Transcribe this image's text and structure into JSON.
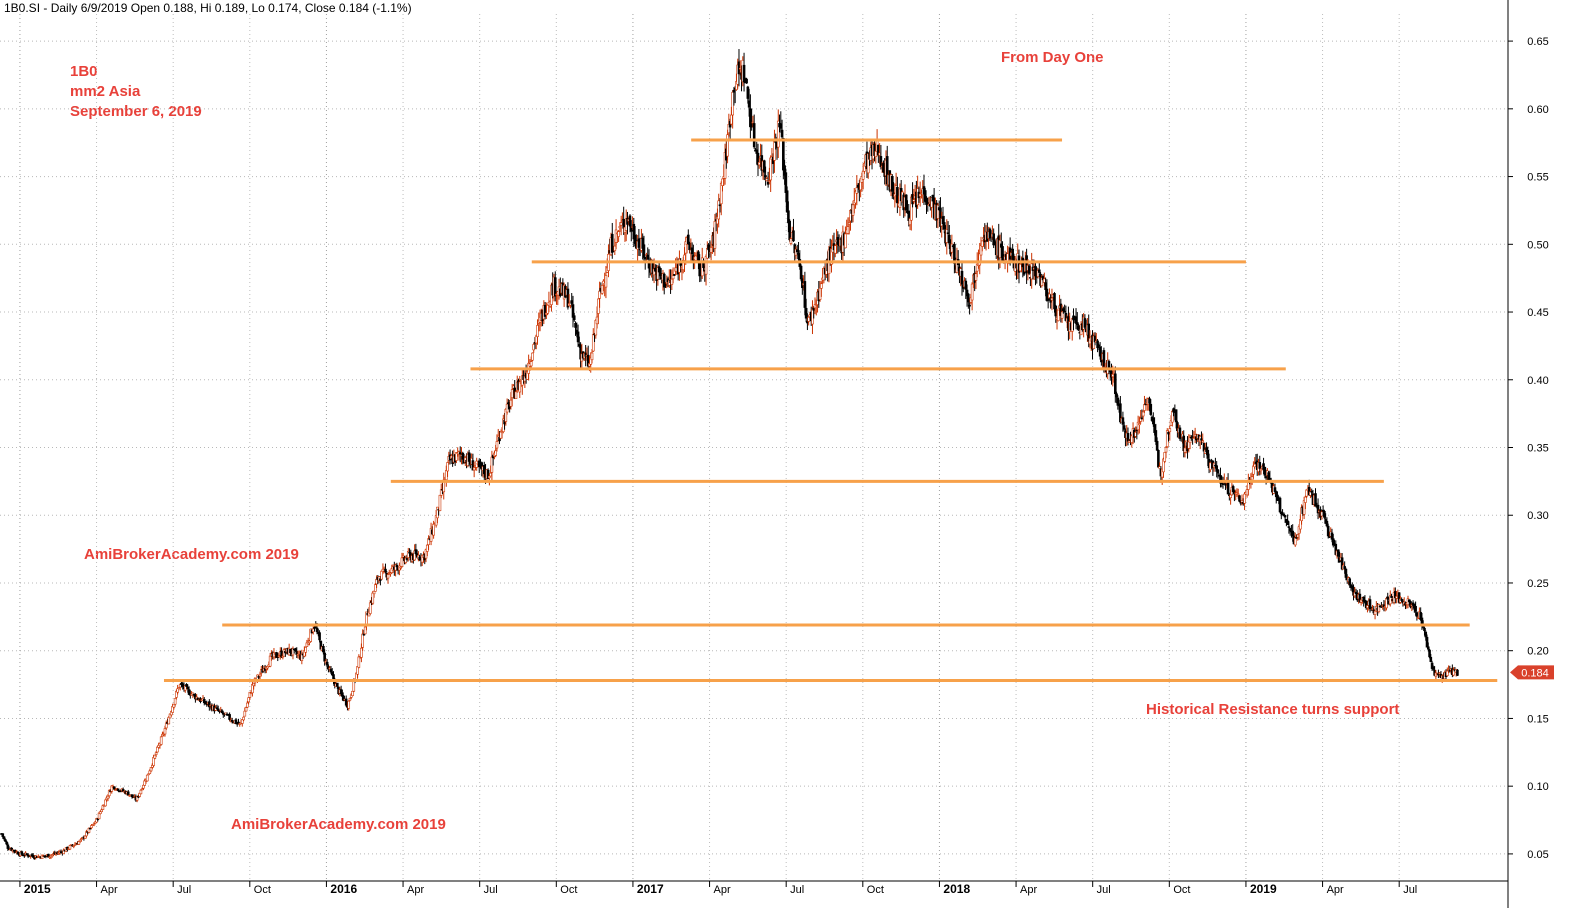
{
  "header": "1B0.SI - Daily 6/9/2019 Open 0.188, Hi 0.189, Lo 0.174, Close 0.184 (-1.1%)",
  "annotations": {
    "symbol": "1B0",
    "company": "mm2 Asia",
    "date": "September 6, 2019",
    "from_day_one": "From Day One",
    "watermark_1": "AmiBrokerAcademy.com   2019",
    "watermark_2": "AmiBrokerAcademy.com  2019",
    "support_note": "Historical Resistance turns support"
  },
  "colors": {
    "candles": "#000000",
    "wick_up": "#cc3300",
    "resistance_lines": "#f7a14a",
    "price_badge": "#d9412b",
    "annotation_text": "#e8413a"
  },
  "chart_data": {
    "type": "candlestick",
    "y_axis": {
      "ticks": [
        "0.05",
        "0.10",
        "0.15",
        "0.20",
        "0.25",
        "0.30",
        "0.35",
        "0.40",
        "0.45",
        "0.50",
        "0.55",
        "0.60",
        "0.65"
      ],
      "range": [
        0.03,
        0.67
      ],
      "side": "right"
    },
    "x_axis": {
      "labels": [
        {
          "t": 2015.0,
          "label": "2015",
          "bold": true
        },
        {
          "t": 2015.25,
          "label": "Apr",
          "bold": false
        },
        {
          "t": 2015.5,
          "label": "Jul",
          "bold": false
        },
        {
          "t": 2015.75,
          "label": "Oct",
          "bold": false
        },
        {
          "t": 2016.0,
          "label": "2016",
          "bold": true
        },
        {
          "t": 2016.25,
          "label": "Apr",
          "bold": false
        },
        {
          "t": 2016.5,
          "label": "Jul",
          "bold": false
        },
        {
          "t": 2016.75,
          "label": "Oct",
          "bold": false
        },
        {
          "t": 2017.0,
          "label": "2017",
          "bold": true
        },
        {
          "t": 2017.25,
          "label": "Apr",
          "bold": false
        },
        {
          "t": 2017.5,
          "label": "Jul",
          "bold": false
        },
        {
          "t": 2017.75,
          "label": "Oct",
          "bold": false
        },
        {
          "t": 2018.0,
          "label": "2018",
          "bold": true
        },
        {
          "t": 2018.25,
          "label": "Apr",
          "bold": false
        },
        {
          "t": 2018.5,
          "label": "Jul",
          "bold": false
        },
        {
          "t": 2018.75,
          "label": "Oct",
          "bold": false
        },
        {
          "t": 2019.0,
          "label": "2019",
          "bold": true
        },
        {
          "t": 2019.25,
          "label": "Apr",
          "bold": false
        },
        {
          "t": 2019.5,
          "label": "Jul",
          "bold": false
        }
      ],
      "range": [
        2014.935,
        2019.855
      ]
    },
    "price_path": [
      [
        2014.94,
        0.065
      ],
      [
        2014.96,
        0.055
      ],
      [
        2015.0,
        0.05
      ],
      [
        2015.06,
        0.048
      ],
      [
        2015.1,
        0.049
      ],
      [
        2015.14,
        0.052
      ],
      [
        2015.2,
        0.06
      ],
      [
        2015.25,
        0.075
      ],
      [
        2015.3,
        0.1
      ],
      [
        2015.35,
        0.095
      ],
      [
        2015.38,
        0.09
      ],
      [
        2015.42,
        0.11
      ],
      [
        2015.47,
        0.14
      ],
      [
        2015.52,
        0.175
      ],
      [
        2015.58,
        0.165
      ],
      [
        2015.65,
        0.155
      ],
      [
        2015.72,
        0.145
      ],
      [
        2015.76,
        0.175
      ],
      [
        2015.82,
        0.195
      ],
      [
        2015.88,
        0.2
      ],
      [
        2015.92,
        0.195
      ],
      [
        2015.96,
        0.22
      ],
      [
        2016.0,
        0.19
      ],
      [
        2016.04,
        0.17
      ],
      [
        2016.07,
        0.16
      ],
      [
        2016.1,
        0.185
      ],
      [
        2016.13,
        0.225
      ],
      [
        2016.17,
        0.255
      ],
      [
        2016.22,
        0.26
      ],
      [
        2016.27,
        0.27
      ],
      [
        2016.32,
        0.27
      ],
      [
        2016.36,
        0.3
      ],
      [
        2016.4,
        0.34
      ],
      [
        2016.44,
        0.345
      ],
      [
        2016.49,
        0.335
      ],
      [
        2016.53,
        0.33
      ],
      [
        2016.57,
        0.365
      ],
      [
        2016.61,
        0.39
      ],
      [
        2016.65,
        0.405
      ],
      [
        2016.7,
        0.445
      ],
      [
        2016.74,
        0.47
      ],
      [
        2016.79,
        0.46
      ],
      [
        2016.83,
        0.42
      ],
      [
        2016.86,
        0.41
      ],
      [
        2016.89,
        0.46
      ],
      [
        2016.93,
        0.5
      ],
      [
        2016.98,
        0.52
      ],
      [
        2017.02,
        0.5
      ],
      [
        2017.07,
        0.48
      ],
      [
        2017.12,
        0.47
      ],
      [
        2017.18,
        0.5
      ],
      [
        2017.22,
        0.48
      ],
      [
        2017.26,
        0.5
      ],
      [
        2017.3,
        0.56
      ],
      [
        2017.33,
        0.62
      ],
      [
        2017.36,
        0.63
      ],
      [
        2017.4,
        0.57
      ],
      [
        2017.44,
        0.55
      ],
      [
        2017.48,
        0.59
      ],
      [
        2017.51,
        0.51
      ],
      [
        2017.55,
        0.48
      ],
      [
        2017.57,
        0.44
      ],
      [
        2017.6,
        0.46
      ],
      [
        2017.64,
        0.49
      ],
      [
        2017.68,
        0.5
      ],
      [
        2017.72,
        0.53
      ],
      [
        2017.76,
        0.56
      ],
      [
        2017.8,
        0.57
      ],
      [
        2017.85,
        0.54
      ],
      [
        2017.9,
        0.525
      ],
      [
        2017.95,
        0.54
      ],
      [
        2018.0,
        0.52
      ],
      [
        2018.05,
        0.49
      ],
      [
        2018.1,
        0.46
      ],
      [
        2018.14,
        0.51
      ],
      [
        2018.18,
        0.5
      ],
      [
        2018.22,
        0.49
      ],
      [
        2018.27,
        0.485
      ],
      [
        2018.32,
        0.48
      ],
      [
        2018.36,
        0.46
      ],
      [
        2018.42,
        0.44
      ],
      [
        2018.47,
        0.44
      ],
      [
        2018.52,
        0.42
      ],
      [
        2018.57,
        0.4
      ],
      [
        2018.6,
        0.36
      ],
      [
        2018.64,
        0.36
      ],
      [
        2018.68,
        0.39
      ],
      [
        2018.72,
        0.33
      ],
      [
        2018.76,
        0.38
      ],
      [
        2018.8,
        0.35
      ],
      [
        2018.84,
        0.36
      ],
      [
        2018.88,
        0.34
      ],
      [
        2018.94,
        0.32
      ],
      [
        2018.99,
        0.31
      ],
      [
        2019.03,
        0.34
      ],
      [
        2019.07,
        0.33
      ],
      [
        2019.12,
        0.3
      ],
      [
        2019.16,
        0.28
      ],
      [
        2019.2,
        0.32
      ],
      [
        2019.25,
        0.3
      ],
      [
        2019.3,
        0.27
      ],
      [
        2019.36,
        0.24
      ],
      [
        2019.42,
        0.23
      ],
      [
        2019.48,
        0.24
      ],
      [
        2019.53,
        0.235
      ],
      [
        2019.57,
        0.225
      ],
      [
        2019.61,
        0.185
      ],
      [
        2019.64,
        0.18
      ],
      [
        2019.67,
        0.185
      ],
      [
        2019.69,
        0.184
      ]
    ],
    "horizontal_lines": [
      {
        "price": 0.577,
        "from": 2017.19,
        "to": 2018.4
      },
      {
        "price": 0.487,
        "from": 2016.67,
        "to": 2019.0
      },
      {
        "price": 0.408,
        "from": 2016.47,
        "to": 2019.13
      },
      {
        "price": 0.325,
        "from": 2016.21,
        "to": 2019.45
      },
      {
        "price": 0.219,
        "from": 2015.66,
        "to": 2019.73
      },
      {
        "price": 0.178,
        "from": 2015.47,
        "to": 2019.82
      }
    ],
    "last_price": "0.184"
  }
}
